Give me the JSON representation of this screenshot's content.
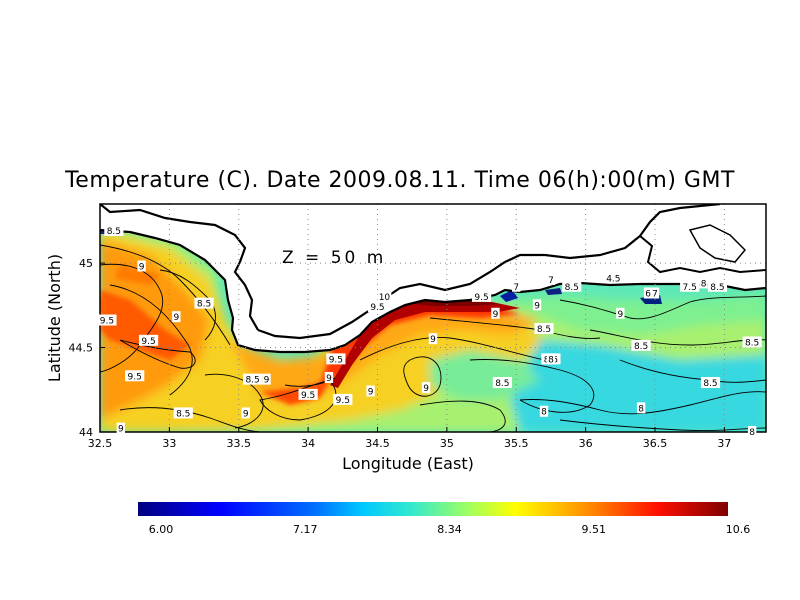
{
  "title": "Temperature (C). Date 2009.08.11. Time 06(h):00(m) GMT",
  "depth_label": "Z = 50 m",
  "x_axis": {
    "label": "Longitude (East)",
    "ticks": [
      "32.5",
      "33",
      "33.5",
      "34",
      "34.5",
      "35",
      "35.5",
      "36",
      "36.5",
      "37"
    ]
  },
  "y_axis": {
    "label": "Latitude (North)",
    "ticks": [
      "44",
      "44.5",
      "45"
    ]
  },
  "colorbar": {
    "min": 6.0,
    "max": 10.6,
    "tick_labels": [
      "6.00",
      "7.17",
      "8.34",
      "9.51",
      "10.6"
    ]
  },
  "chart_data": {
    "type": "heatmap",
    "variable": "Temperature (C)",
    "depth_m": 50,
    "lon_range": [
      32.5,
      37.3
    ],
    "lat_range": [
      44.0,
      45.35
    ],
    "value_range": [
      6.0,
      10.6
    ],
    "contour_labels": [
      {
        "lon": 32.6,
        "lat": 45.19,
        "value": "8.5"
      },
      {
        "lon": 32.8,
        "lat": 44.98,
        "value": "9"
      },
      {
        "lon": 32.55,
        "lat": 44.66,
        "value": "9.5"
      },
      {
        "lon": 32.85,
        "lat": 44.54,
        "value": "9.5"
      },
      {
        "lon": 32.75,
        "lat": 44.33,
        "value": "9.5"
      },
      {
        "lon": 33.05,
        "lat": 44.68,
        "value": "9"
      },
      {
        "lon": 33.25,
        "lat": 44.76,
        "value": "8.5"
      },
      {
        "lon": 33.6,
        "lat": 44.31,
        "value": "8.5"
      },
      {
        "lon": 33.7,
        "lat": 44.31,
        "value": "9"
      },
      {
        "lon": 33.55,
        "lat": 44.11,
        "value": "9"
      },
      {
        "lon": 33.1,
        "lat": 44.11,
        "value": "8.5"
      },
      {
        "lon": 32.65,
        "lat": 44.02,
        "value": "9"
      },
      {
        "lon": 34.0,
        "lat": 44.22,
        "value": "9.5"
      },
      {
        "lon": 34.2,
        "lat": 44.43,
        "value": "9.5"
      },
      {
        "lon": 34.15,
        "lat": 44.32,
        "value": "9"
      },
      {
        "lon": 34.25,
        "lat": 44.19,
        "value": "9.5"
      },
      {
        "lon": 34.45,
        "lat": 44.24,
        "value": "9"
      },
      {
        "lon": 34.55,
        "lat": 44.8,
        "value": "10"
      },
      {
        "lon": 34.5,
        "lat": 44.74,
        "value": "9.5"
      },
      {
        "lon": 34.9,
        "lat": 44.55,
        "value": "9"
      },
      {
        "lon": 34.85,
        "lat": 44.26,
        "value": "9"
      },
      {
        "lon": 35.25,
        "lat": 44.8,
        "value": "9.5"
      },
      {
        "lon": 35.5,
        "lat": 44.86,
        "value": "7"
      },
      {
        "lon": 35.35,
        "lat": 44.7,
        "value": "9"
      },
      {
        "lon": 35.65,
        "lat": 44.75,
        "value": "9"
      },
      {
        "lon": 35.7,
        "lat": 44.61,
        "value": "8.5"
      },
      {
        "lon": 35.75,
        "lat": 44.43,
        "value": "8.5"
      },
      {
        "lon": 35.75,
        "lat": 44.43,
        "value": "8"
      },
      {
        "lon": 35.4,
        "lat": 44.29,
        "value": "8.5"
      },
      {
        "lon": 35.9,
        "lat": 44.86,
        "value": "8.5"
      },
      {
        "lon": 35.75,
        "lat": 44.9,
        "value": "7"
      },
      {
        "lon": 35.7,
        "lat": 44.12,
        "value": "8"
      },
      {
        "lon": 36.2,
        "lat": 44.91,
        "value": "4.5"
      },
      {
        "lon": 36.25,
        "lat": 44.7,
        "value": "9"
      },
      {
        "lon": 36.4,
        "lat": 44.51,
        "value": "8.5"
      },
      {
        "lon": 36.45,
        "lat": 44.82,
        "value": "6"
      },
      {
        "lon": 36.5,
        "lat": 44.82,
        "value": "7"
      },
      {
        "lon": 36.75,
        "lat": 44.86,
        "value": "7.5"
      },
      {
        "lon": 36.85,
        "lat": 44.88,
        "value": "8"
      },
      {
        "lon": 36.95,
        "lat": 44.86,
        "value": "8.5"
      },
      {
        "lon": 36.4,
        "lat": 44.14,
        "value": "8"
      },
      {
        "lon": 36.9,
        "lat": 44.29,
        "value": "8.5"
      },
      {
        "lon": 37.2,
        "lat": 44.53,
        "value": "8.5"
      },
      {
        "lon": 37.2,
        "lat": 44.0,
        "value": "8"
      }
    ]
  }
}
